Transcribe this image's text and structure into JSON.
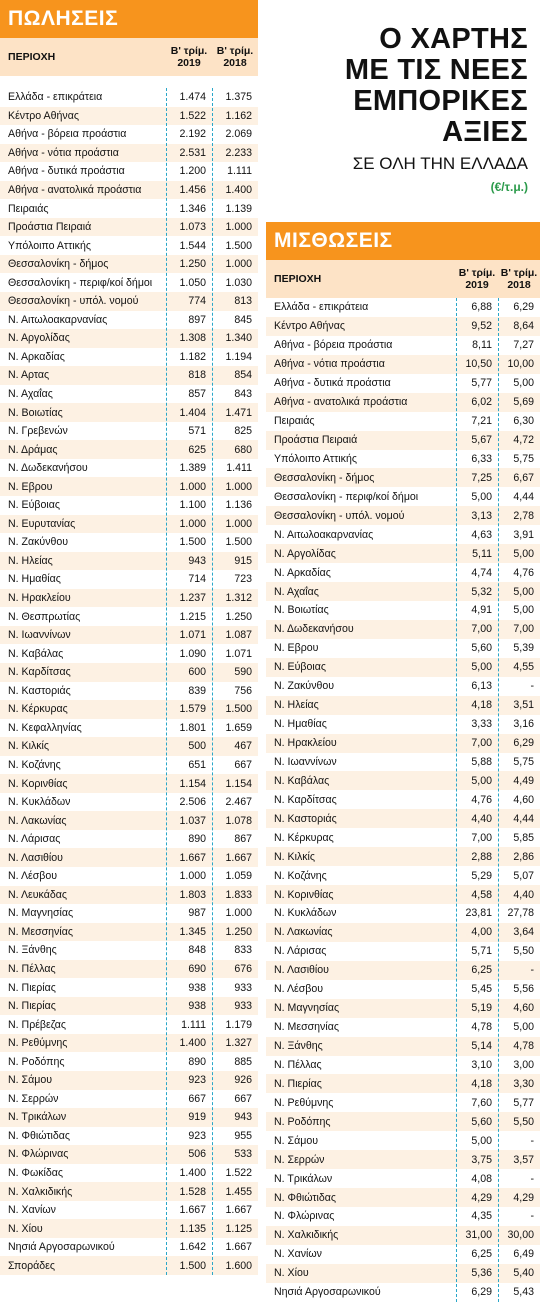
{
  "sales": {
    "header": "ΠΩΛΗΣΕΙΣ",
    "col_region": "ΠΕΡΙΟΧΗ",
    "col_2019": [
      "Β' τρίμ.",
      "2019"
    ],
    "col_2018": [
      "Β' τρίμ.",
      "2018"
    ],
    "rows": [
      [
        "Ελλάδα - επικράτεια",
        "1.474",
        "1.375"
      ],
      [
        "Κέντρο Αθήνας",
        "1.522",
        "1.162"
      ],
      [
        "Αθήνα - βόρεια προάστια",
        "2.192",
        "2.069"
      ],
      [
        "Αθήνα - νότια προάστια",
        "2.531",
        "2.233"
      ],
      [
        "Αθήνα - δυτικά προάστια",
        "1.200",
        "1.111"
      ],
      [
        "Αθήνα - ανατολικά προάστια",
        "1.456",
        "1.400"
      ],
      [
        "Πειραιάς",
        "1.346",
        "1.139"
      ],
      [
        "Προάστια Πειραιά",
        "1.073",
        "1.000"
      ],
      [
        "Υπόλοιπο Αττικής",
        "1.544",
        "1.500"
      ],
      [
        "Θεσσαλονίκη - δήμος",
        "1.250",
        "1.000"
      ],
      [
        "Θεσσαλονίκη - περιφ/κοί δήμοι",
        "1.050",
        "1.030"
      ],
      [
        "Θεσσαλονίκη - υπόλ. νομού",
        "774",
        "813"
      ],
      [
        "Ν. Αιτωλοακαρνανίας",
        "897",
        "845"
      ],
      [
        "Ν. Αργολίδας",
        "1.308",
        "1.340"
      ],
      [
        "Ν. Αρκαδίας",
        "1.182",
        "1.194"
      ],
      [
        "Ν. Αρτας",
        "818",
        "854"
      ],
      [
        "Ν. Αχαΐας",
        "857",
        "843"
      ],
      [
        "Ν. Βοιωτίας",
        "1.404",
        "1.471"
      ],
      [
        "Ν. Γρεβενών",
        "571",
        "825"
      ],
      [
        "Ν. Δράμας",
        "625",
        "680"
      ],
      [
        "Ν. Δωδεκανήσου",
        "1.389",
        "1.411"
      ],
      [
        "Ν. Εβρου",
        "1.000",
        "1.000"
      ],
      [
        "Ν. Εύβοιας",
        "1.100",
        "1.136"
      ],
      [
        "Ν. Ευρυτανίας",
        "1.000",
        "1.000"
      ],
      [
        "Ν. Ζακύνθου",
        "1.500",
        "1.500"
      ],
      [
        "Ν. Ηλείας",
        "943",
        "915"
      ],
      [
        "Ν. Ημαθίας",
        "714",
        "723"
      ],
      [
        "Ν. Ηρακλείου",
        "1.237",
        "1.312"
      ],
      [
        "Ν. Θεσπρωτίας",
        "1.215",
        "1.250"
      ],
      [
        "Ν. Ιωαννίνων",
        "1.071",
        "1.087"
      ],
      [
        "Ν. Καβάλας",
        "1.090",
        "1.071"
      ],
      [
        "Ν. Καρδίτσας",
        "600",
        "590"
      ],
      [
        "Ν. Καστοριάς",
        "839",
        "756"
      ],
      [
        "Ν. Κέρκυρας",
        "1.579",
        "1.500"
      ],
      [
        "Ν. Κεφαλληνίας",
        "1.801",
        "1.659"
      ],
      [
        "Ν. Κιλκίς",
        "500",
        "467"
      ],
      [
        "Ν. Κοζάνης",
        "651",
        "667"
      ],
      [
        "Ν. Κορινθίας",
        "1.154",
        "1.154"
      ],
      [
        "Ν. Κυκλάδων",
        "2.506",
        "2.467"
      ],
      [
        "Ν. Λακωνίας",
        "1.037",
        "1.078"
      ],
      [
        "Ν. Λάρισας",
        "890",
        "867"
      ],
      [
        "Ν. Λασιθίου",
        "1.667",
        "1.667"
      ],
      [
        "Ν. Λέσβου",
        "1.000",
        "1.059"
      ],
      [
        "Ν. Λευκάδας",
        "1.803",
        "1.833"
      ],
      [
        "Ν. Μαγνησίας",
        "987",
        "1.000"
      ],
      [
        "Ν. Μεσσηνίας",
        "1.345",
        "1.250"
      ],
      [
        "Ν. Ξάνθης",
        "848",
        "833"
      ],
      [
        "Ν. Πέλλας",
        "690",
        "676"
      ],
      [
        "Ν. Πιερίας",
        "938",
        "933"
      ],
      [
        "Ν. Πιερίας",
        "938",
        "933"
      ],
      [
        "Ν. Πρέβεζας",
        "1.111",
        "1.179"
      ],
      [
        "Ν. Ρεθύμνης",
        "1.400",
        "1.327"
      ],
      [
        "Ν. Ροδόπης",
        "890",
        "885"
      ],
      [
        "Ν. Σάμου",
        "923",
        "926"
      ],
      [
        "Ν. Σερρών",
        "667",
        "667"
      ],
      [
        "Ν. Τρικάλων",
        "919",
        "943"
      ],
      [
        "Ν. Φθιώτιδας",
        "923",
        "955"
      ],
      [
        "Ν. Φλώρινας",
        "506",
        "533"
      ],
      [
        "Ν. Φωκίδας",
        "1.400",
        "1.522"
      ],
      [
        "Ν. Χαλκιδικής",
        "1.528",
        "1.455"
      ],
      [
        "Ν. Χανίων",
        "1.667",
        "1.667"
      ],
      [
        "Ν. Χίου",
        "1.135",
        "1.125"
      ],
      [
        "Νησιά Αργοσαρωνικού",
        "1.642",
        "1.667"
      ],
      [
        "Σποράδες",
        "1.500",
        "1.600"
      ]
    ]
  },
  "title": {
    "line1": "Ο ΧΑΡΤΗΣ",
    "line2": "ΜΕ ΤΙΣ ΝΕΕΣ",
    "line3": "ΕΜΠΟΡΙΚΕΣ",
    "line4": "ΑΞΙΕΣ",
    "subtitle": "ΣΕ ΟΛΗ ΤΗΝ ΕΛΛΑΔΑ",
    "unit": "(€/τ.μ.)"
  },
  "rent": {
    "header": "ΜΙΣΘΩΣΕΙΣ",
    "col_region": "ΠΕΡΙΟΧΗ",
    "col_2019": [
      "Β' τρίμ.",
      "2019"
    ],
    "col_2018": [
      "Β' τρίμ.",
      "2018"
    ],
    "rows": [
      [
        "Ελλάδα - επικράτεια",
        "6,88",
        "6,29"
      ],
      [
        "Κέντρο Αθήνας",
        "9,52",
        "8,64"
      ],
      [
        "Αθήνα - βόρεια προάστια",
        "8,11",
        "7,27"
      ],
      [
        "Αθήνα - νότια προάστια",
        "10,50",
        "10,00"
      ],
      [
        "Αθήνα - δυτικά προάστια",
        "5,77",
        "5,00"
      ],
      [
        "Αθήνα - ανατολικά προάστια",
        "6,02",
        "5,69"
      ],
      [
        "Πειραιάς",
        "7,21",
        "6,30"
      ],
      [
        "Προάστια Πειραιά",
        "5,67",
        "4,72"
      ],
      [
        "Υπόλοιπο Αττικής",
        "6,33",
        "5,75"
      ],
      [
        "Θεσσαλονίκη - δήμος",
        "7,25",
        "6,67"
      ],
      [
        "Θεσσαλονίκη - περιφ/κοί δήμοι",
        "5,00",
        "4,44"
      ],
      [
        "Θεσσαλονίκη - υπόλ. νομού",
        "3,13",
        "2,78"
      ],
      [
        "Ν. Αιτωλοακαρνανίας",
        "4,63",
        "3,91"
      ],
      [
        "Ν. Αργολίδας",
        "5,11",
        "5,00"
      ],
      [
        "Ν. Αρκαδίας",
        "4,74",
        "4,76"
      ],
      [
        "Ν. Αχαΐας",
        "5,32",
        "5,00"
      ],
      [
        "Ν. Βοιωτίας",
        "4,91",
        "5,00"
      ],
      [
        "Ν. Δωδεκανήσου",
        "7,00",
        "7,00"
      ],
      [
        "Ν. Εβρου",
        "5,60",
        "5,39"
      ],
      [
        "Ν. Εύβοιας",
        "5,00",
        "4,55"
      ],
      [
        "Ν. Ζακύνθου",
        "6,13",
        "-"
      ],
      [
        "Ν. Ηλείας",
        "4,18",
        "3,51"
      ],
      [
        "Ν. Ημαθίας",
        "3,33",
        "3,16"
      ],
      [
        "Ν. Ηρακλείου",
        "7,00",
        "6,29"
      ],
      [
        "Ν. Ιωαννίνων",
        "5,88",
        "5,75"
      ],
      [
        "Ν. Καβάλας",
        "5,00",
        "4,49"
      ],
      [
        "Ν. Καρδίτσας",
        "4,76",
        "4,60"
      ],
      [
        "Ν. Καστοριάς",
        "4,40",
        "4,44"
      ],
      [
        "Ν. Κέρκυρας",
        "7,00",
        "5,85"
      ],
      [
        "Ν. Κιλκίς",
        "2,88",
        "2,86"
      ],
      [
        "Ν. Κοζάνης",
        "5,29",
        "5,07"
      ],
      [
        "Ν. Κορινθίας",
        "4,58",
        "4,40"
      ],
      [
        "Ν. Κυκλάδων",
        "23,81",
        "27,78"
      ],
      [
        "Ν. Λακωνίας",
        "4,00",
        "3,64"
      ],
      [
        "Ν. Λάρισας",
        "5,71",
        "5,50"
      ],
      [
        "Ν. Λασιθίου",
        "6,25",
        "-"
      ],
      [
        "Ν. Λέσβου",
        "5,45",
        "5,56"
      ],
      [
        "Ν. Μαγνησίας",
        "5,19",
        "4,60"
      ],
      [
        "Ν. Μεσσηνίας",
        "4,78",
        "5,00"
      ],
      [
        "Ν. Ξάνθης",
        "5,14",
        "4,78"
      ],
      [
        "Ν. Πέλλας",
        "3,10",
        "3,00"
      ],
      [
        "Ν. Πιερίας",
        "4,18",
        "3,30"
      ],
      [
        "Ν. Ρεθύμνης",
        "7,60",
        "5,77"
      ],
      [
        "Ν. Ροδόπης",
        "5,60",
        "5,50"
      ],
      [
        "Ν. Σάμου",
        "5,00",
        "-"
      ],
      [
        "Ν. Σερρών",
        "3,75",
        "3,57"
      ],
      [
        "Ν. Τρικάλων",
        "4,08",
        "-"
      ],
      [
        "Ν. Φθιώτιδας",
        "4,29",
        "4,29"
      ],
      [
        "Ν. Φλώρινας",
        "4,35",
        "-"
      ],
      [
        "Ν. Χαλκιδικής",
        "31,00",
        "30,00"
      ],
      [
        "Ν. Χανίων",
        "6,25",
        "6,49"
      ],
      [
        "Ν. Χίου",
        "5,36",
        "5,40"
      ],
      [
        "Νησιά Αργοσαρωνικού",
        "6,29",
        "5,43"
      ]
    ]
  },
  "colors": {
    "orange": "#f7941d",
    "green": "#2a9a4a",
    "dash": "#2aa7c9"
  }
}
